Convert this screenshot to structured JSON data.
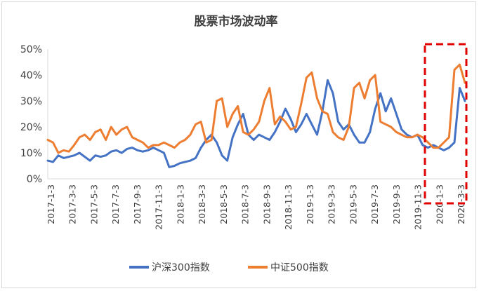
{
  "chart_data": {
    "type": "line",
    "title": "股票市场波动率",
    "xlabel": "",
    "ylabel": "",
    "ylim": [
      0,
      50
    ],
    "y_ticks": [
      "0%",
      "10%",
      "20%",
      "30%",
      "40%",
      "50%"
    ],
    "x_tick_labels": [
      "2017-1-3",
      "2017-3-3",
      "2017-5-3",
      "2017-7-3",
      "2017-9-3",
      "2017-11-3",
      "2018-1-3",
      "2018-3-3",
      "2018-5-3",
      "2018-7-3",
      "2018-9-3",
      "2018-11-3",
      "2019-1-3",
      "2019-3-3",
      "2019-5-3",
      "2019-7-3",
      "2019-9-3",
      "2019-11-3",
      "2020-1-3",
      "2020-3-3"
    ],
    "grid": false,
    "legend_position": "bottom",
    "x_index": [
      0,
      1,
      2,
      3,
      4,
      5,
      6,
      7,
      8,
      9,
      10,
      11,
      12,
      13,
      14,
      15,
      16,
      17,
      18,
      19,
      20,
      21,
      22,
      23,
      24,
      25,
      26,
      27,
      28,
      29,
      30,
      31,
      32,
      33,
      34,
      35,
      36,
      37,
      38,
      39,
      40,
      41,
      42,
      43,
      44,
      45,
      46,
      47,
      48,
      49,
      50,
      51,
      52,
      53,
      54,
      55,
      56,
      57,
      58,
      59,
      60,
      61,
      62,
      63,
      64,
      65,
      66,
      67,
      68,
      69,
      70,
      71,
      72,
      73,
      74,
      75,
      76,
      77,
      78,
      79
    ],
    "series": [
      {
        "name": "沪深300指数",
        "color": "#4472C4",
        "values": [
          7,
          6.5,
          9,
          8,
          8.5,
          9,
          10,
          8.5,
          7,
          9,
          8.5,
          9,
          10.5,
          11,
          10,
          11.5,
          12,
          11,
          10.5,
          11,
          12,
          11,
          10,
          4.5,
          5,
          6,
          6.5,
          7,
          8,
          12,
          15,
          17,
          14,
          9,
          7,
          16,
          21,
          25,
          17,
          15,
          17,
          16,
          15,
          18,
          22,
          27,
          23,
          18,
          21,
          25,
          21,
          17,
          26,
          38,
          33,
          22,
          19,
          21,
          17,
          14,
          14,
          18,
          27,
          33,
          26,
          31,
          25,
          19,
          17,
          16,
          17,
          13,
          12,
          13,
          12,
          11,
          12,
          14,
          35,
          30
        ]
      },
      {
        "name": "中证500指数",
        "color": "#ED7D31",
        "values": [
          15,
          14,
          10,
          11,
          10.5,
          13,
          16,
          17,
          15,
          18,
          19,
          15,
          20,
          17,
          19,
          20,
          16,
          15,
          14,
          12,
          13,
          13,
          14,
          13,
          12,
          14,
          15,
          17,
          21,
          22,
          14,
          15,
          30,
          31,
          20,
          25,
          28,
          18,
          17,
          19,
          22,
          30,
          35,
          21,
          24,
          22,
          19,
          20,
          29,
          39,
          41,
          31,
          26,
          25,
          18,
          16,
          15,
          20,
          35,
          37,
          31,
          38,
          40,
          22,
          21,
          20,
          18,
          17,
          16,
          16,
          17,
          16,
          14,
          12,
          12,
          14,
          16,
          42,
          44,
          37
        ]
      }
    ]
  }
}
